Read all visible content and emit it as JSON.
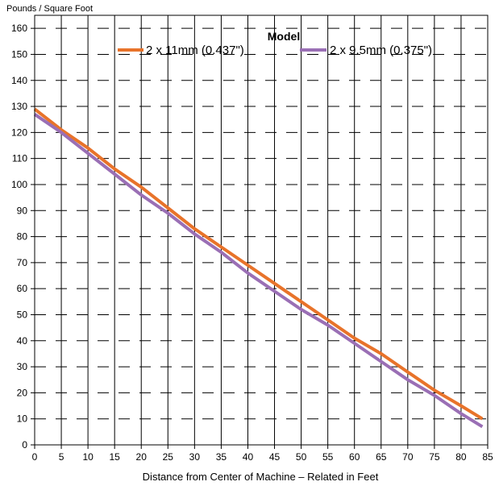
{
  "chart_data": {
    "type": "line",
    "ylabel": "Pounds / Square Foot",
    "xlabel": "Distance from Center of Machine – Related in Feet",
    "xlim": [
      0,
      85
    ],
    "ylim": [
      0,
      165
    ],
    "x_ticks": [
      0,
      5,
      10,
      15,
      20,
      25,
      30,
      35,
      40,
      45,
      50,
      55,
      60,
      65,
      70,
      75,
      80,
      85
    ],
    "y_ticks": [
      0,
      10,
      20,
      30,
      40,
      50,
      60,
      70,
      80,
      90,
      100,
      110,
      120,
      130,
      140,
      150,
      160
    ],
    "grid": "on",
    "legend": {
      "title": "Model",
      "placement": "top-right"
    },
    "series": [
      {
        "name": "2 x 11mm (0.437\")",
        "color": "#e8732a",
        "x": [
          0,
          5,
          10,
          15,
          20,
          25,
          30,
          35,
          40,
          45,
          50,
          55,
          60,
          65,
          70,
          75,
          80,
          84
        ],
        "y": [
          129,
          121,
          114,
          106,
          99,
          91,
          83,
          76,
          69,
          62,
          55,
          48,
          41,
          35,
          28,
          21,
          15,
          10
        ]
      },
      {
        "name": "2 x 9.5mm (0.375\")",
        "color": "#9a6fb5",
        "x": [
          0,
          5,
          10,
          15,
          20,
          25,
          30,
          35,
          40,
          45,
          50,
          55,
          60,
          65,
          70,
          75,
          80,
          84
        ],
        "y": [
          127,
          120,
          112,
          104,
          96,
          89,
          81,
          74,
          66,
          59,
          52,
          46,
          39,
          32,
          25,
          19,
          12,
          7
        ]
      }
    ]
  }
}
